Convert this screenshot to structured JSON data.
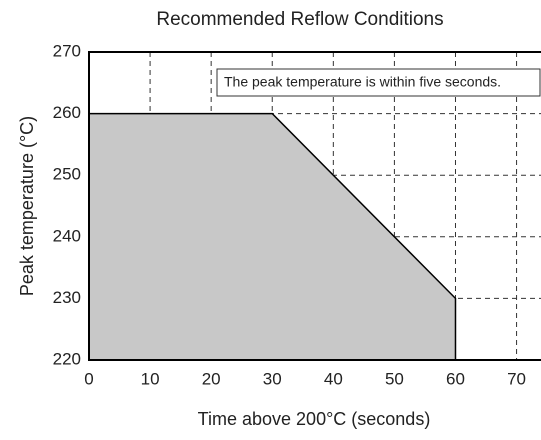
{
  "chart_data": {
    "type": "area",
    "title": "Recommended Reflow Conditions",
    "xlabel": "Time above 200°C (seconds)",
    "ylabel": "Peak temperature (°C)",
    "annotation": "The peak temperature is within five seconds.",
    "x": [
      0,
      30,
      60
    ],
    "values": [
      260,
      260,
      230
    ],
    "color": "#c8c8c8",
    "xlim": [
      0,
      74
    ],
    "ylim": [
      220,
      270
    ],
    "xticks": [
      0,
      10,
      20,
      30,
      40,
      50,
      60,
      70
    ],
    "yticks": [
      220,
      230,
      240,
      250,
      260,
      270
    ],
    "grid": true
  }
}
